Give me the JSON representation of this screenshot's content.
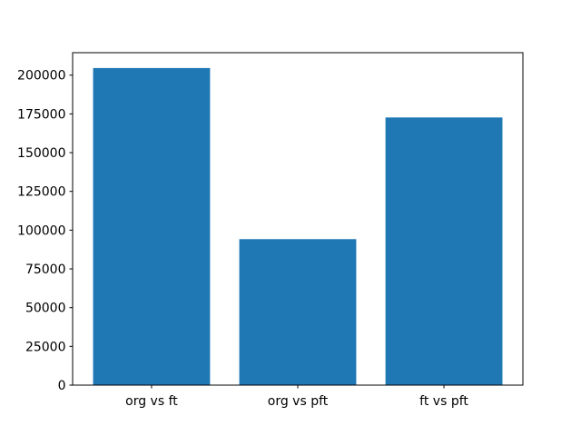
{
  "figure": {
    "background": "#ffffff"
  },
  "chart_data": {
    "type": "bar",
    "title": "",
    "categories": [
      "org vs ft",
      "org vs pft",
      "ft vs pft"
    ],
    "values": [
      204600,
      94200,
      172700
    ],
    "bar_color": "#1f77b4",
    "xlabel": "",
    "ylabel": "",
    "ylim": [
      0,
      214500
    ],
    "yticks": [
      0,
      25000,
      50000,
      75000,
      100000,
      125000,
      150000,
      175000,
      200000
    ],
    "grid": false,
    "legend_position": "none",
    "axis_color": "#000000"
  }
}
